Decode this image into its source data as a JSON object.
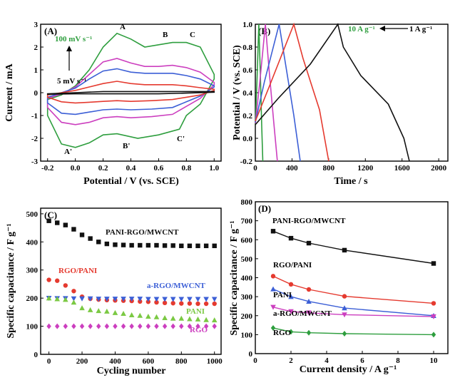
{
  "chart_data": [
    {
      "panel": "(A)",
      "type": "line",
      "xlabel": "Potential / V (vs. SCE)",
      "ylabel": "Current / mA",
      "xlim": [
        -0.25,
        1.05
      ],
      "ylim": [
        -3,
        3
      ],
      "xticks": [
        -0.2,
        0.0,
        0.2,
        0.4,
        0.6,
        0.8,
        1.0
      ],
      "yticks": [
        -3,
        -2,
        -1,
        0,
        1,
        2,
        3
      ],
      "annotations": [
        "100 mV s⁻¹",
        "5 mV s⁻¹",
        "A",
        "B",
        "C",
        "A'",
        "B'",
        "C'"
      ],
      "series": [
        {
          "color": "#2e9e3e",
          "upper": [
            [
              -0.2,
              -0.3
            ],
            [
              -0.1,
              -0.1
            ],
            [
              0.0,
              0.3
            ],
            [
              0.1,
              1.0
            ],
            [
              0.2,
              2.0
            ],
            [
              0.3,
              2.6
            ],
            [
              0.4,
              2.35
            ],
            [
              0.5,
              2.0
            ],
            [
              0.6,
              2.1
            ],
            [
              0.7,
              2.2
            ],
            [
              0.8,
              2.2
            ],
            [
              0.9,
              2.0
            ],
            [
              1.0,
              0.8
            ]
          ],
          "lower": [
            [
              1.0,
              0.6
            ],
            [
              0.9,
              -0.5
            ],
            [
              0.8,
              -1.0
            ],
            [
              0.75,
              -1.6
            ],
            [
              0.6,
              -1.85
            ],
            [
              0.45,
              -2.0
            ],
            [
              0.3,
              -1.8
            ],
            [
              0.2,
              -1.85
            ],
            [
              0.1,
              -2.2
            ],
            [
              0.0,
              -2.4
            ],
            [
              -0.1,
              -2.25
            ],
            [
              -0.2,
              -1.0
            ]
          ]
        },
        {
          "color": "#cc3fbf",
          "upper": [
            [
              -0.2,
              -0.25
            ],
            [
              -0.1,
              -0.05
            ],
            [
              0.0,
              0.25
            ],
            [
              0.1,
              0.8
            ],
            [
              0.2,
              1.35
            ],
            [
              0.3,
              1.5
            ],
            [
              0.4,
              1.3
            ],
            [
              0.5,
              1.15
            ],
            [
              0.6,
              1.15
            ],
            [
              0.7,
              1.2
            ],
            [
              0.8,
              1.1
            ],
            [
              0.9,
              0.9
            ],
            [
              1.0,
              0.45
            ]
          ],
          "lower": [
            [
              1.0,
              0.35
            ],
            [
              0.9,
              -0.25
            ],
            [
              0.8,
              -0.6
            ],
            [
              0.7,
              -0.95
            ],
            [
              0.55,
              -1.05
            ],
            [
              0.4,
              -1.1
            ],
            [
              0.3,
              -1.05
            ],
            [
              0.2,
              -1.1
            ],
            [
              0.1,
              -1.3
            ],
            [
              0.0,
              -1.4
            ],
            [
              -0.1,
              -1.3
            ],
            [
              -0.2,
              -0.65
            ]
          ]
        },
        {
          "color": "#3c5fd6",
          "upper": [
            [
              -0.2,
              -0.2
            ],
            [
              -0.1,
              0.0
            ],
            [
              0.0,
              0.2
            ],
            [
              0.1,
              0.6
            ],
            [
              0.2,
              0.95
            ],
            [
              0.3,
              1.05
            ],
            [
              0.4,
              0.9
            ],
            [
              0.5,
              0.85
            ],
            [
              0.6,
              0.85
            ],
            [
              0.7,
              0.85
            ],
            [
              0.8,
              0.75
            ],
            [
              0.9,
              0.6
            ],
            [
              1.0,
              0.3
            ]
          ],
          "lower": [
            [
              1.0,
              0.25
            ],
            [
              0.9,
              -0.15
            ],
            [
              0.8,
              -0.4
            ],
            [
              0.7,
              -0.65
            ],
            [
              0.55,
              -0.72
            ],
            [
              0.4,
              -0.75
            ],
            [
              0.3,
              -0.72
            ],
            [
              0.2,
              -0.75
            ],
            [
              0.1,
              -0.85
            ],
            [
              0.0,
              -0.95
            ],
            [
              -0.1,
              -0.9
            ],
            [
              -0.2,
              -0.45
            ]
          ]
        },
        {
          "color": "#e53a2f",
          "upper": [
            [
              -0.2,
              -0.1
            ],
            [
              -0.1,
              0.0
            ],
            [
              0.0,
              0.1
            ],
            [
              0.1,
              0.25
            ],
            [
              0.2,
              0.4
            ],
            [
              0.3,
              0.5
            ],
            [
              0.4,
              0.4
            ],
            [
              0.5,
              0.35
            ],
            [
              0.6,
              0.35
            ],
            [
              0.7,
              0.35
            ],
            [
              0.8,
              0.3
            ],
            [
              0.9,
              0.22
            ],
            [
              1.0,
              0.15
            ]
          ],
          "lower": [
            [
              1.0,
              0.1
            ],
            [
              0.9,
              -0.1
            ],
            [
              0.8,
              -0.2
            ],
            [
              0.7,
              -0.3
            ],
            [
              0.55,
              -0.35
            ],
            [
              0.4,
              -0.38
            ],
            [
              0.3,
              -0.35
            ],
            [
              0.2,
              -0.38
            ],
            [
              0.1,
              -0.42
            ],
            [
              0.0,
              -0.45
            ],
            [
              -0.1,
              -0.4
            ],
            [
              -0.2,
              -0.2
            ]
          ]
        },
        {
          "color": "#111111",
          "upper": [
            [
              -0.2,
              -0.05
            ],
            [
              0.0,
              0.0
            ],
            [
              0.2,
              0.05
            ],
            [
              0.4,
              0.05
            ],
            [
              0.6,
              0.05
            ],
            [
              0.8,
              0.05
            ],
            [
              1.0,
              0.05
            ]
          ],
          "lower": [
            [
              1.0,
              0.02
            ],
            [
              0.8,
              -0.02
            ],
            [
              0.6,
              -0.05
            ],
            [
              0.4,
              -0.05
            ],
            [
              0.2,
              -0.05
            ],
            [
              0.0,
              -0.05
            ],
            [
              -0.2,
              -0.07
            ]
          ]
        }
      ]
    },
    {
      "panel": "(B)",
      "type": "line",
      "xlabel": "Time / s",
      "ylabel": "Potential / V (vs. SCE)",
      "xlim": [
        0,
        2100
      ],
      "ylim": [
        -0.2,
        1.0
      ],
      "xticks": [
        0,
        400,
        800,
        1200,
        1600,
        2000
      ],
      "yticks": [
        -0.2,
        0.0,
        0.2,
        0.4,
        0.6,
        0.8,
        1.0
      ],
      "annotations": [
        "10 A g⁻¹",
        "1 A g⁻¹"
      ],
      "series": [
        {
          "color": "#2e9e3e",
          "points": [
            [
              0,
              0.12
            ],
            [
              18,
              0.5
            ],
            [
              38,
              1.0
            ],
            [
              55,
              0.55
            ],
            [
              70,
              0.1
            ],
            [
              82,
              -0.2
            ]
          ]
        },
        {
          "color": "#cc3fbf",
          "points": [
            [
              0,
              0.13
            ],
            [
              50,
              0.5
            ],
            [
              110,
              1.0
            ],
            [
              150,
              0.6
            ],
            [
              200,
              0.15
            ],
            [
              240,
              -0.2
            ]
          ]
        },
        {
          "color": "#3c5fd6",
          "points": [
            [
              0,
              0.14
            ],
            [
              100,
              0.5
            ],
            [
              260,
              1.0
            ],
            [
              320,
              0.7
            ],
            [
              420,
              0.2
            ],
            [
              490,
              -0.2
            ]
          ]
        },
        {
          "color": "#e53a2f",
          "points": [
            [
              0,
              0.15
            ],
            [
              150,
              0.45
            ],
            [
              420,
              1.0
            ],
            [
              520,
              0.7
            ],
            [
              700,
              0.25
            ],
            [
              800,
              -0.2
            ]
          ]
        },
        {
          "color": "#111111",
          "points": [
            [
              0,
              0.12
            ],
            [
              250,
              0.35
            ],
            [
              600,
              0.65
            ],
            [
              900,
              1.0
            ],
            [
              960,
              0.8
            ],
            [
              1150,
              0.55
            ],
            [
              1450,
              0.3
            ],
            [
              1620,
              0.0
            ],
            [
              1680,
              -0.2
            ]
          ]
        }
      ]
    },
    {
      "panel": "(C)",
      "type": "scatter",
      "xlabel": "Cycling number",
      "ylabel": "Specific capacitance / F g⁻¹",
      "xlim": [
        -50,
        1040
      ],
      "ylim": [
        0,
        520
      ],
      "xticks": [
        0,
        200,
        400,
        600,
        800,
        1000
      ],
      "yticks": [
        0,
        100,
        200,
        300,
        400,
        500
      ],
      "x": [
        0,
        50,
        100,
        150,
        200,
        250,
        300,
        350,
        400,
        450,
        500,
        550,
        600,
        650,
        700,
        750,
        800,
        850,
        900,
        950,
        1000
      ],
      "series": [
        {
          "name": "PANI-RGO/MWCNT",
          "marker": "square",
          "color": "#111111",
          "values": [
            475,
            468,
            460,
            445,
            425,
            412,
            400,
            393,
            390,
            389,
            388,
            388,
            388,
            388,
            387,
            387,
            386,
            386,
            386,
            386,
            386
          ]
        },
        {
          "name": "RGO/PANI",
          "marker": "circle",
          "color": "#e53a2f",
          "values": [
            265,
            262,
            245,
            225,
            205,
            198,
            195,
            193,
            192,
            191,
            190,
            188,
            187,
            185,
            183,
            182,
            181,
            181,
            180,
            180,
            180
          ]
        },
        {
          "name": "a-RGO/MWCNT",
          "marker": "triangle-down",
          "color": "#3c5fd6",
          "values": [
            200,
            199,
            199,
            198,
            198,
            198,
            197,
            197,
            197,
            197,
            197,
            197,
            196,
            196,
            196,
            196,
            196,
            196,
            196,
            196,
            196
          ]
        },
        {
          "name": "PANI",
          "marker": "triangle-up",
          "color": "#7bc943",
          "values": [
            200,
            197,
            195,
            185,
            165,
            158,
            155,
            153,
            148,
            145,
            140,
            138,
            135,
            133,
            130,
            128,
            128,
            126,
            125,
            123,
            122
          ]
        },
        {
          "name": "RGO",
          "marker": "diamond",
          "color": "#cc3fbf",
          "values": [
            100,
            100,
            100,
            100,
            100,
            100,
            100,
            100,
            100,
            100,
            100,
            100,
            100,
            100,
            100,
            100,
            100,
            100,
            100,
            100,
            100
          ]
        }
      ]
    },
    {
      "panel": "(D)",
      "type": "line",
      "xlabel": "Current density / A g⁻¹",
      "ylabel": "Specific capacitance / F g⁻¹",
      "xlim": [
        0,
        10.8
      ],
      "ylim": [
        0,
        800
      ],
      "xticks": [
        0,
        2,
        4,
        6,
        8,
        10
      ],
      "yticks": [
        0,
        100,
        200,
        300,
        400,
        500,
        600,
        700,
        800
      ],
      "x": [
        1,
        2,
        3,
        5,
        10
      ],
      "series": [
        {
          "name": "PANI-RGO/MWCNT",
          "marker": "square",
          "color": "#111111",
          "values": [
            645,
            608,
            582,
            545,
            475
          ]
        },
        {
          "name": "RGO/PANI",
          "marker": "circle",
          "color": "#e53a2f",
          "values": [
            408,
            365,
            338,
            302,
            265
          ]
        },
        {
          "name": "PANI",
          "marker": "triangle-up",
          "color": "#3c5fd6",
          "values": [
            340,
            300,
            275,
            240,
            200
          ]
        },
        {
          "name": "a-RGO/MWCNT",
          "marker": "triangle-down",
          "color": "#cc3fbf",
          "values": [
            245,
            222,
            215,
            205,
            195
          ]
        },
        {
          "name": "RGO",
          "marker": "diamond",
          "color": "#2e9e3e",
          "values": [
            135,
            115,
            110,
            105,
            100
          ]
        }
      ]
    }
  ]
}
